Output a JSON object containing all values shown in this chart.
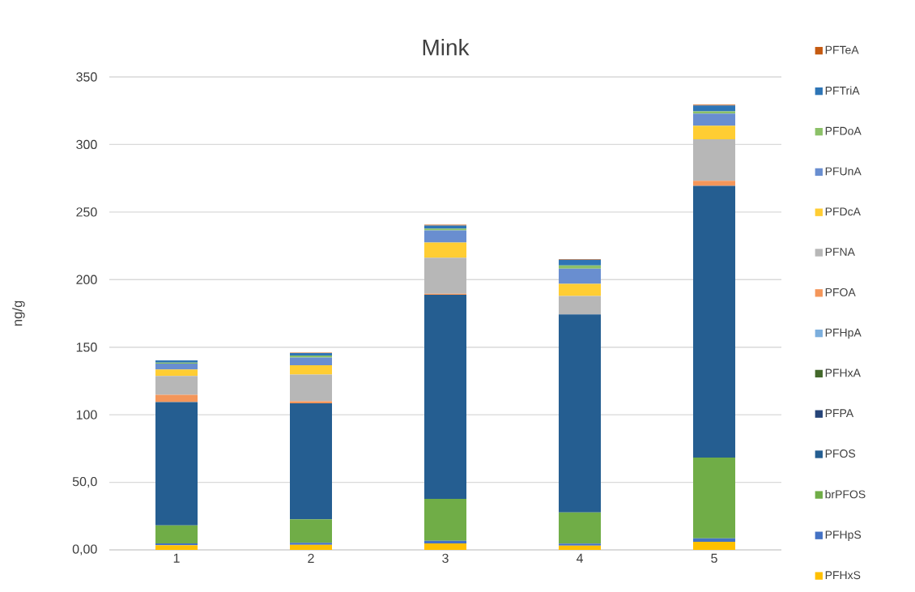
{
  "chart_data": {
    "type": "bar",
    "title": "Mink",
    "ylabel": "ng/g",
    "categories": [
      "1",
      "2",
      "3",
      "4",
      "5"
    ],
    "stacked": true,
    "grid": "y",
    "legend": "right",
    "ylim": [
      0,
      350
    ],
    "yticks": [
      {
        "value": 0,
        "label": "0,00"
      },
      {
        "value": 50,
        "label": "50,0"
      },
      100,
      150,
      200,
      250,
      300,
      350
    ],
    "series": [
      {
        "name": "PFHxS",
        "color": "#ffc000",
        "values": [
          3.4,
          3.8,
          4.8,
          3.2,
          6.0
        ]
      },
      {
        "name": "PFHpS",
        "color": "#4472c4",
        "values": [
          1.4,
          1.4,
          2.0,
          1.4,
          2.6
        ]
      },
      {
        "name": "brPFOS",
        "color": "#70ad47",
        "values": [
          13.4,
          17.4,
          31.0,
          23.1,
          59.7
        ]
      },
      {
        "name": "PFOS",
        "color": "#255e91",
        "values": [
          91.1,
          85.9,
          151.0,
          146.6,
          201.1
        ]
      },
      {
        "name": "PFPA",
        "color": "#264478",
        "values": [
          0,
          0,
          0,
          0,
          0
        ]
      },
      {
        "name": "PFHxA",
        "color": "#43682b",
        "values": [
          0,
          0,
          0,
          0,
          0
        ]
      },
      {
        "name": "PFHpA",
        "color": "#7cafdd",
        "values": [
          0,
          0,
          0,
          0,
          0
        ]
      },
      {
        "name": "PFOA",
        "color": "#f4965a",
        "values": [
          5.4,
          1.4,
          0.7,
          0,
          3.8
        ]
      },
      {
        "name": "PFNA",
        "color": "#b7b7b7",
        "values": [
          14.0,
          19.8,
          26.7,
          13.6,
          30.7
        ]
      },
      {
        "name": "PFDcA",
        "color": "#ffcd33",
        "values": [
          4.8,
          7.0,
          11.2,
          9.0,
          10.0
        ]
      },
      {
        "name": "PFUnA",
        "color": "#698ed0",
        "values": [
          4.4,
          5.6,
          9.0,
          11.2,
          9.0
        ]
      },
      {
        "name": "PFDoA",
        "color": "#8cc168",
        "values": [
          0.7,
          1.6,
          1.4,
          2.4,
          1.6
        ]
      },
      {
        "name": "PFTriA",
        "color": "#2e75b6",
        "values": [
          1.6,
          1.8,
          2.2,
          4.2,
          4.4
        ]
      },
      {
        "name": "PFTeA",
        "color": "#c55a11",
        "values": [
          null,
          0.3,
          0.6,
          0.5,
          0.6
        ]
      }
    ]
  }
}
